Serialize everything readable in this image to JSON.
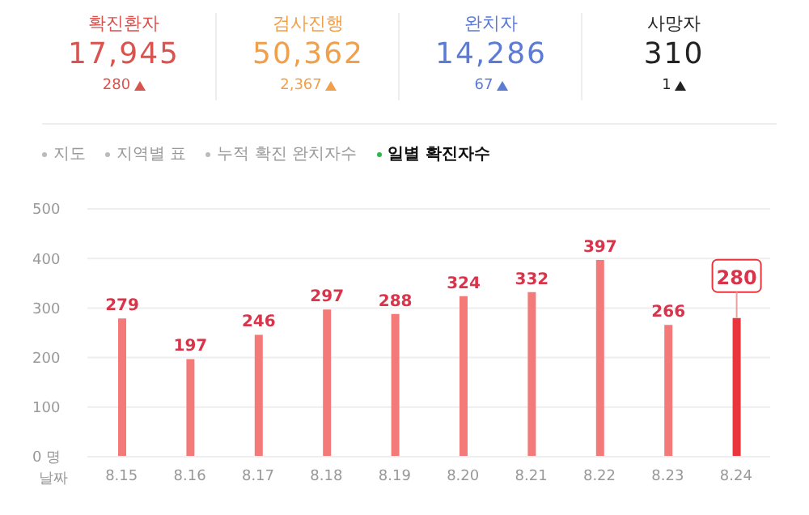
{
  "chart_data": [
    {
      "type": "other",
      "categories": [
        "확진환자",
        "검사진행",
        "완치자",
        "사망자"
      ],
      "colors": [
        "#d9534f",
        "#f0a04b",
        "#5b7bd5",
        "#222222"
      ],
      "annotations": [
        "17,945",
        "280",
        "50,362",
        "2,367",
        "14,286",
        "67",
        "310",
        "1"
      ]
    },
    {
      "type": "bar",
      "categories": [
        "8.15",
        "8.16",
        "8.17",
        "8.18",
        "8.19",
        "8.20",
        "8.21",
        "8.22",
        "8.23",
        "8.24"
      ],
      "values": [
        279,
        197,
        246,
        297,
        288,
        324,
        332,
        397,
        266,
        280
      ],
      "colors": [
        "#f47a7a",
        "#f47a7a",
        "#f47a7a",
        "#f47a7a",
        "#f47a7a",
        "#f47a7a",
        "#f47a7a",
        "#f47a7a",
        "#f47a7a",
        "#e8363c"
      ],
      "xlabel": "날짜",
      "ylim": [
        0,
        500
      ],
      "yticks": [
        {
          "value": 0,
          "label": "0 명"
        },
        100,
        200,
        300,
        400,
        500
      ],
      "grid": "y",
      "data_labels": true,
      "annotations": [
        "지도",
        "지역별 표",
        "누적 확진 완치자수",
        "일별 확진자수"
      ]
    }
  ]
}
